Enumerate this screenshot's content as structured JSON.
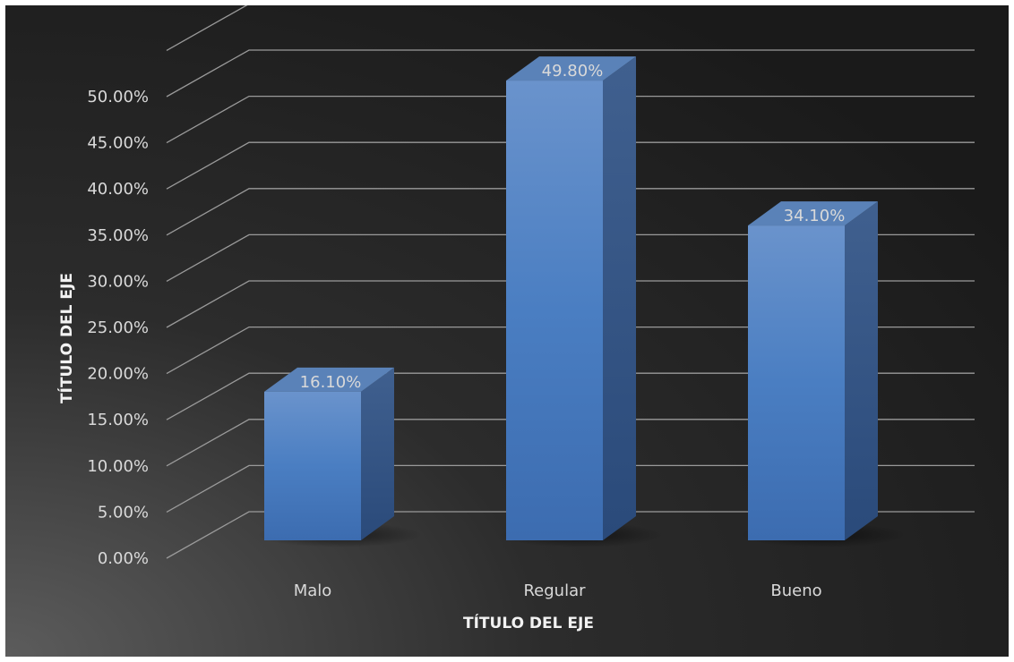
{
  "colors": {
    "bar_front": "#4a7ec2",
    "bar_top": "#5a82b8",
    "bar_side": "#2f5487",
    "gridline": "#9a9a9a",
    "text": "#d9d9d9"
  },
  "chart_data": {
    "type": "bar",
    "categories": [
      "Malo",
      "Regular",
      "Bueno"
    ],
    "values": [
      16.1,
      49.8,
      34.1
    ],
    "data_labels": [
      "16.10%",
      "49.80%",
      "34.10%"
    ],
    "y_ticks": [
      "0.00%",
      "5.00%",
      "10.00%",
      "15.00%",
      "20.00%",
      "25.00%",
      "30.00%",
      "35.00%",
      "40.00%",
      "45.00%",
      "50.00%"
    ],
    "title": "",
    "xlabel": "TÍTULO DEL EJE",
    "ylabel": "TÍTULO DEL EJE",
    "ylim": [
      0,
      50
    ],
    "grid": true,
    "legend": "none",
    "style": "3d-column"
  }
}
